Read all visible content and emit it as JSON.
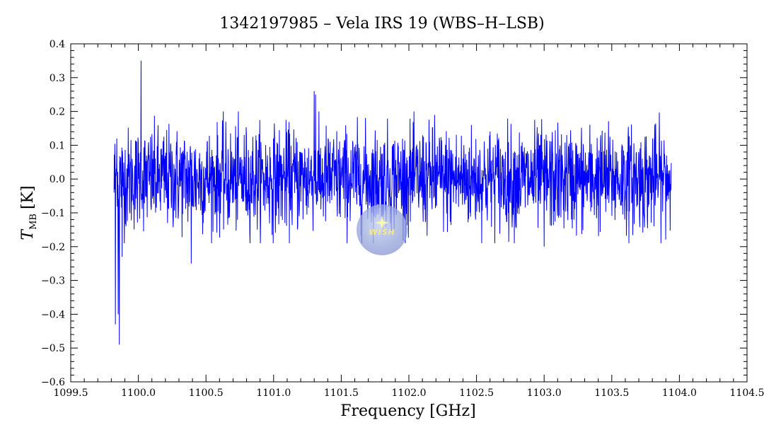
{
  "chart_data": {
    "type": "line",
    "title": "1342197985 – Vela IRS 19 (WBS–H–LSB)",
    "xlabel": "Frequency [GHz]",
    "ylabel": "T",
    "ylabel_sub": "MB",
    "ylabel_unit": "[K]",
    "xlim": [
      1099.5,
      1104.5
    ],
    "ylim": [
      -0.6,
      0.4
    ],
    "xticks": [
      1099.5,
      1100.0,
      1100.5,
      1101.0,
      1101.5,
      1102.0,
      1102.5,
      1103.0,
      1103.5,
      1104.0,
      1104.5
    ],
    "xtick_labels": [
      "1099.5",
      "1100.0",
      "1100.5",
      "1101.0",
      "1101.5",
      "1102.0",
      "1102.5",
      "1103.0",
      "1103.5",
      "1104.0",
      "1104.5"
    ],
    "yticks": [
      -0.6,
      -0.5,
      -0.4,
      -0.3,
      -0.2,
      -0.1,
      0.0,
      0.1,
      0.2,
      0.3,
      0.4
    ],
    "ytick_labels": [
      "−0.6",
      "−0.5",
      "−0.4",
      "−0.3",
      "−0.2",
      "−0.1",
      "0.0",
      "0.1",
      "0.2",
      "0.3",
      "0.4"
    ],
    "grid": false,
    "series": [
      {
        "color": "#0000ff",
        "x_range": [
          1099.82,
          1103.94
        ],
        "noise_rms": 0.075,
        "features": [
          {
            "x": 1099.82,
            "y": -0.04
          },
          {
            "x": 1099.83,
            "y": -0.43
          },
          {
            "x": 1099.84,
            "y": 0.12
          },
          {
            "x": 1099.85,
            "y": -0.4
          },
          {
            "x": 1099.86,
            "y": -0.49
          },
          {
            "x": 1099.88,
            "y": -0.23
          },
          {
            "x": 1100.02,
            "y": 0.35
          },
          {
            "x": 1100.39,
            "y": -0.25
          },
          {
            "x": 1101.3,
            "y": 0.26
          },
          {
            "x": 1101.31,
            "y": 0.25
          },
          {
            "x": 1102.19,
            "y": 0.19
          },
          {
            "x": 1103.0,
            "y": -0.2
          }
        ]
      }
    ]
  },
  "logo": {
    "text": "WISH"
  }
}
